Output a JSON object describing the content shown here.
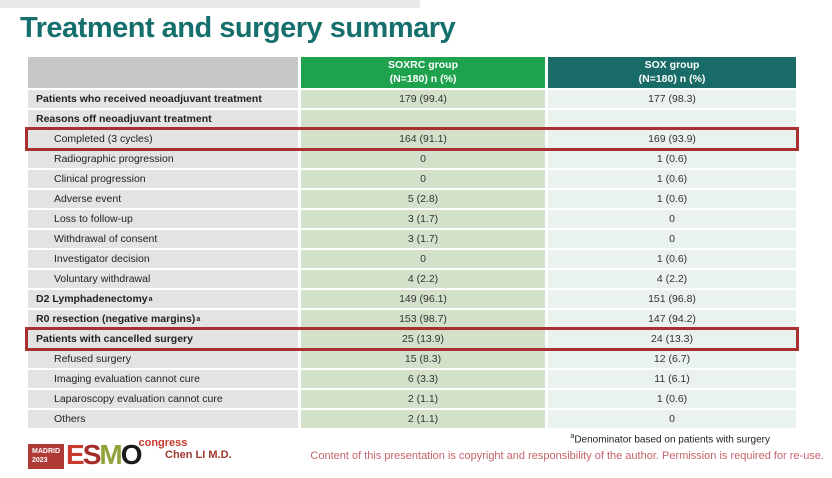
{
  "slide": {
    "title": "Treatment and surgery summary",
    "footnote": {
      "sup": "a",
      "text": "Denominator based on patients with surgery"
    },
    "copyright": "Content of this presentation is copyright and responsibility of the author.  Permission is required for re-use.",
    "author": "Chen LI M.D.",
    "logo": {
      "madrid_line1": "MADRID",
      "madrid_line2": "2023",
      "letter_e": "E",
      "letter_s": "S",
      "letter_m": "M",
      "letter_o": "O",
      "congress": "congress"
    }
  },
  "table": {
    "columns": [
      {
        "line1": "SOXRC group",
        "line2": "(N=180)  n (%)"
      },
      {
        "line1": "SOX group",
        "line2": "(N=180)  n (%)"
      }
    ],
    "rows": [
      {
        "label": "Patients who received neoadjuvant treatment",
        "soxrc": "179 (99.4)",
        "sox": "177 (98.3)",
        "level": 0,
        "bold": true,
        "highlight": false
      },
      {
        "label": "Reasons off neoadjuvant treatment",
        "soxrc": "",
        "sox": "",
        "level": 0,
        "bold": true,
        "highlight": false
      },
      {
        "label": "Completed (3 cycles)",
        "soxrc": "164 (91.1)",
        "sox": "169 (93.9)",
        "level": 1,
        "bold": false,
        "highlight": true
      },
      {
        "label": "Radiographic progression",
        "soxrc": "0",
        "sox": "1 (0.6)",
        "level": 1,
        "bold": false,
        "highlight": false
      },
      {
        "label": "Clinical progression",
        "soxrc": "0",
        "sox": "1 (0.6)",
        "level": 1,
        "bold": false,
        "highlight": false
      },
      {
        "label": "Adverse event",
        "soxrc": "5 (2.8)",
        "sox": "1 (0.6)",
        "level": 1,
        "bold": false,
        "highlight": false
      },
      {
        "label": "Loss to follow-up",
        "soxrc": "3 (1.7)",
        "sox": "0",
        "level": 1,
        "bold": false,
        "highlight": false
      },
      {
        "label": "Withdrawal of consent",
        "soxrc": "3 (1.7)",
        "sox": "0",
        "level": 1,
        "bold": false,
        "highlight": false
      },
      {
        "label": "Investigator decision",
        "soxrc": "0",
        "sox": "1 (0.6)",
        "level": 1,
        "bold": false,
        "highlight": false
      },
      {
        "label": "Voluntary withdrawal",
        "soxrc": "4 (2.2)",
        "sox": "4 (2.2)",
        "level": 1,
        "bold": false,
        "highlight": false
      },
      {
        "label": "D2 Lymphadenectomy",
        "sup": "a",
        "soxrc": "149 (96.1)",
        "sox": "151 (96.8)",
        "level": 0,
        "bold": true,
        "highlight": false
      },
      {
        "label": "R0 resection (negative margins)",
        "sup": "a",
        "soxrc": "153 (98.7)",
        "sox": "147 (94.2)",
        "level": 0,
        "bold": true,
        "highlight": false
      },
      {
        "label": "Patients with cancelled surgery",
        "soxrc": "25 (13.9)",
        "sox": "24 (13.3)",
        "level": 0,
        "bold": true,
        "highlight": true
      },
      {
        "label": "Refused surgery",
        "soxrc": "15 (8.3)",
        "sox": "12 (6.7)",
        "level": 1,
        "bold": false,
        "highlight": false
      },
      {
        "label": "Imaging evaluation cannot cure",
        "soxrc": "6 (3.3)",
        "sox": "11 (6.1)",
        "level": 1,
        "bold": false,
        "highlight": false
      },
      {
        "label": "Laparoscopy evaluation cannot cure",
        "soxrc": "2 (1.1)",
        "sox": "1 (0.6)",
        "level": 1,
        "bold": false,
        "highlight": false
      },
      {
        "label": "Others",
        "soxrc": "2 (1.1)",
        "sox": "0",
        "level": 1,
        "bold": false,
        "highlight": false
      }
    ]
  },
  "colors": {
    "title_teal": "#15706D",
    "header_green": "#1FA24E",
    "header_teal": "#186B66",
    "header_blank_gray": "#C7C7C7",
    "label_cell_gray": "#E3E3E3",
    "soxrc_cell_green": "#D3E1CB",
    "sox_cell_mint": "#E9F2EC",
    "highlight_red": "#A93030",
    "author_red": "#A0392E",
    "copyright_rose": "#C4636F"
  }
}
